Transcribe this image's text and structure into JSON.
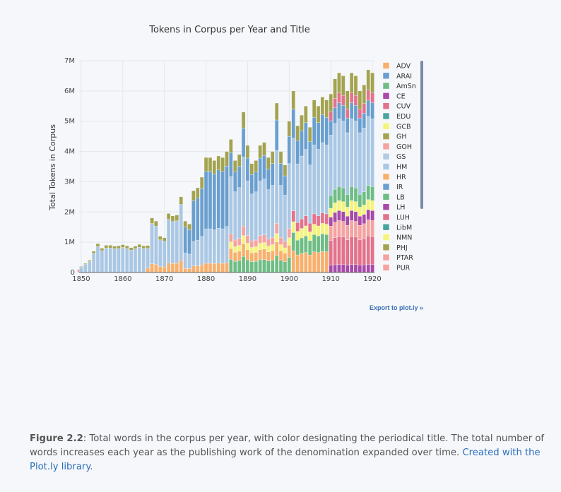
{
  "chart_data": {
    "type": "bar",
    "stacked": true,
    "title": "Tokens in Corpus per Year and Title",
    "ylabel": "Total Tokens in Corpus",
    "xlabel": "",
    "x_ticks": [
      "1850",
      "1860",
      "1870",
      "1880",
      "1890",
      "1900",
      "1910",
      "1920"
    ],
    "y_ticks": [
      "0",
      "1M",
      "2M",
      "3M",
      "4M",
      "5M",
      "6M",
      "7M"
    ],
    "xlim": [
      1849.5,
      1920.5
    ],
    "ylim": [
      0,
      7000000
    ],
    "grid": true,
    "legend_position": "right",
    "years": [
      1849,
      1850,
      1851,
      1852,
      1853,
      1854,
      1855,
      1856,
      1857,
      1858,
      1859,
      1860,
      1861,
      1862,
      1863,
      1864,
      1865,
      1866,
      1867,
      1868,
      1869,
      1870,
      1871,
      1872,
      1873,
      1874,
      1875,
      1876,
      1877,
      1878,
      1879,
      1880,
      1881,
      1882,
      1883,
      1884,
      1885,
      1886,
      1887,
      1888,
      1889,
      1890,
      1891,
      1892,
      1893,
      1894,
      1895,
      1896,
      1897,
      1898,
      1899,
      1900,
      1901,
      1902,
      1903,
      1904,
      1905,
      1906,
      1907,
      1908,
      1909,
      1910,
      1911,
      1912,
      1913,
      1914,
      1915,
      1916,
      1917,
      1918,
      1919,
      1920
    ],
    "totals": [
      100000,
      200000,
      300000,
      400000,
      700000,
      950000,
      800000,
      900000,
      900000,
      870000,
      880000,
      920000,
      880000,
      820000,
      870000,
      930000,
      880000,
      890000,
      1800000,
      1700000,
      1200000,
      1150000,
      1950000,
      1870000,
      1900000,
      2500000,
      1700000,
      1600000,
      2700000,
      2800000,
      3150000,
      3800000,
      3800000,
      3700000,
      3850000,
      3800000,
      4000000,
      4400000,
      3700000,
      3900000,
      5300000,
      4200000,
      3600000,
      3700000,
      4200000,
      4300000,
      3800000,
      4000000,
      5600000,
      4000000,
      3550000,
      5000000,
      6000000,
      4850000,
      5200000,
      5500000,
      4800000,
      5700000,
      5500000,
      5800000,
      5700000,
      5900000,
      6400000,
      6600000,
      6500000,
      6000000,
      6600000,
      6500000,
      6000000,
      6200000,
      6700000,
      6600000
    ],
    "series": [
      {
        "name": "ADV",
        "color": "#f8b06c"
      },
      {
        "name": "ARAI",
        "color": "#6a9fcf"
      },
      {
        "name": "AmSn",
        "color": "#6ebd85"
      },
      {
        "name": "CE",
        "color": "#a84aa8"
      },
      {
        "name": "CUV",
        "color": "#e3728c"
      },
      {
        "name": "EDU",
        "color": "#4aa59c"
      },
      {
        "name": "GCB",
        "color": "#f4f47a"
      },
      {
        "name": "GH",
        "color": "#a3a350"
      },
      {
        "name": "GOH",
        "color": "#f4a3a0"
      },
      {
        "name": "GS",
        "color": "#b2cbe3"
      },
      {
        "name": "HM",
        "color": "#aac7e4"
      },
      {
        "name": "HR",
        "color": "#f8b06c"
      },
      {
        "name": "IR",
        "color": "#6a9fcf"
      },
      {
        "name": "LB",
        "color": "#6ebd85"
      },
      {
        "name": "LH",
        "color": "#a84aa8"
      },
      {
        "name": "LUH",
        "color": "#e3728c"
      },
      {
        "name": "LibM",
        "color": "#4aa59c"
      },
      {
        "name": "NMN",
        "color": "#f4f47a"
      },
      {
        "name": "PHJ",
        "color": "#a3a350"
      },
      {
        "name": "PTAR",
        "color": "#f4a3a0"
      },
      {
        "name": "PUR",
        "color": "#f4a3a0"
      }
    ]
  },
  "export_label": "Export to plot.ly »",
  "caption": {
    "label": "Figure 2.2",
    "text": ": Total words in the corpus per year, with color designating the periodical title. The total number of words increases each year as the publishing work of the denomination expanded over time. ",
    "link_text": "Created with the Plot.ly library",
    "end": "."
  }
}
